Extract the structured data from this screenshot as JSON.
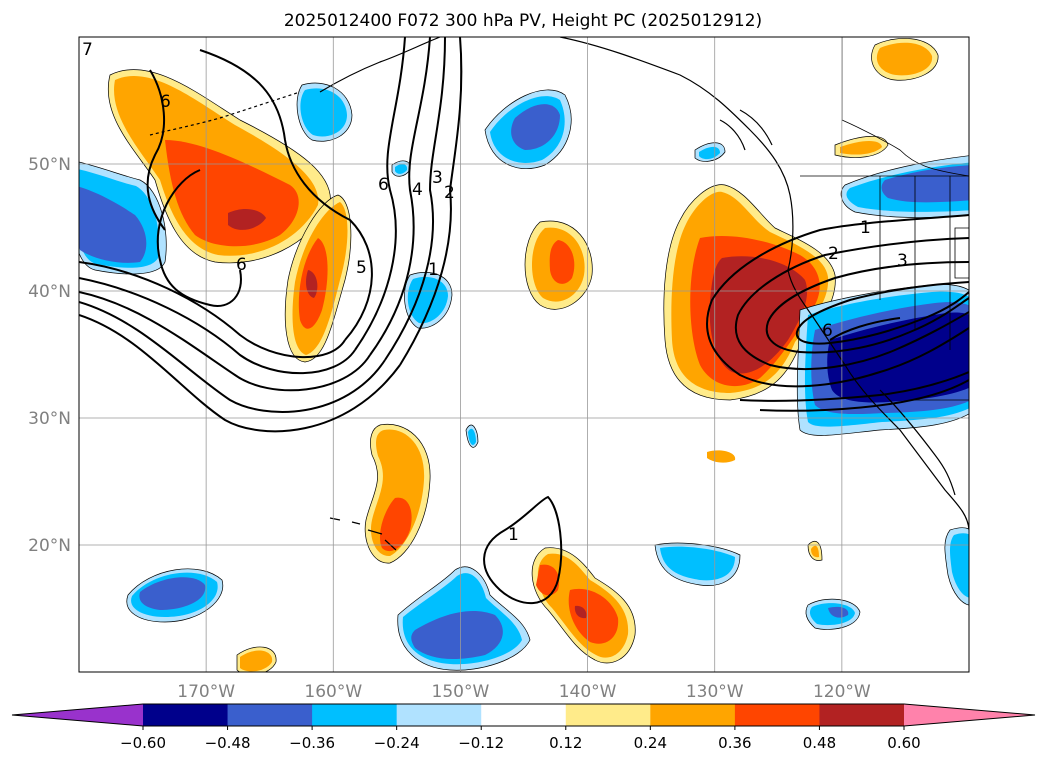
{
  "title": "2025012400 F072 300 hPa PV, Height PC (2025012912)",
  "map": {
    "lon_range": [
      180,
      110
    ],
    "lat_range": [
      10,
      60
    ],
    "lon_ticks": [
      "170°W",
      "160°W",
      "150°W",
      "140°W",
      "130°W",
      "120°W"
    ],
    "lon_values": [
      170,
      160,
      150,
      140,
      130,
      120
    ],
    "lat_ticks": [
      "50°N",
      "40°N",
      "30°N",
      "20°N"
    ],
    "lat_values": [
      50,
      40,
      30,
      20
    ],
    "gridlines": true,
    "contour_labels": [
      "6",
      "6",
      "6",
      "5",
      "4",
      "3",
      "2",
      "1",
      "1",
      "2",
      "3",
      "6",
      "1",
      "7"
    ]
  },
  "colorbar": {
    "levels": [
      "−0.60",
      "−0.48",
      "−0.36",
      "−0.24",
      "−0.12",
      "0.12",
      "0.24",
      "0.36",
      "0.48",
      "0.60"
    ],
    "colors": [
      "#9932cc",
      "#00008b",
      "#3a5fcd",
      "#00bfff",
      "#b0e2ff",
      "#ffffff",
      "#ffeb8a",
      "#ffa500",
      "#ff4500",
      "#b22222",
      "#ff82ab"
    ],
    "extend": "both"
  },
  "palette": {
    "pos1": "#ffeb8a",
    "pos2": "#ffa500",
    "pos3": "#ff4500",
    "pos4": "#b22222",
    "neg1": "#b0e2ff",
    "neg2": "#00bfff",
    "neg3": "#3a5fcd",
    "neg4": "#00008b"
  }
}
